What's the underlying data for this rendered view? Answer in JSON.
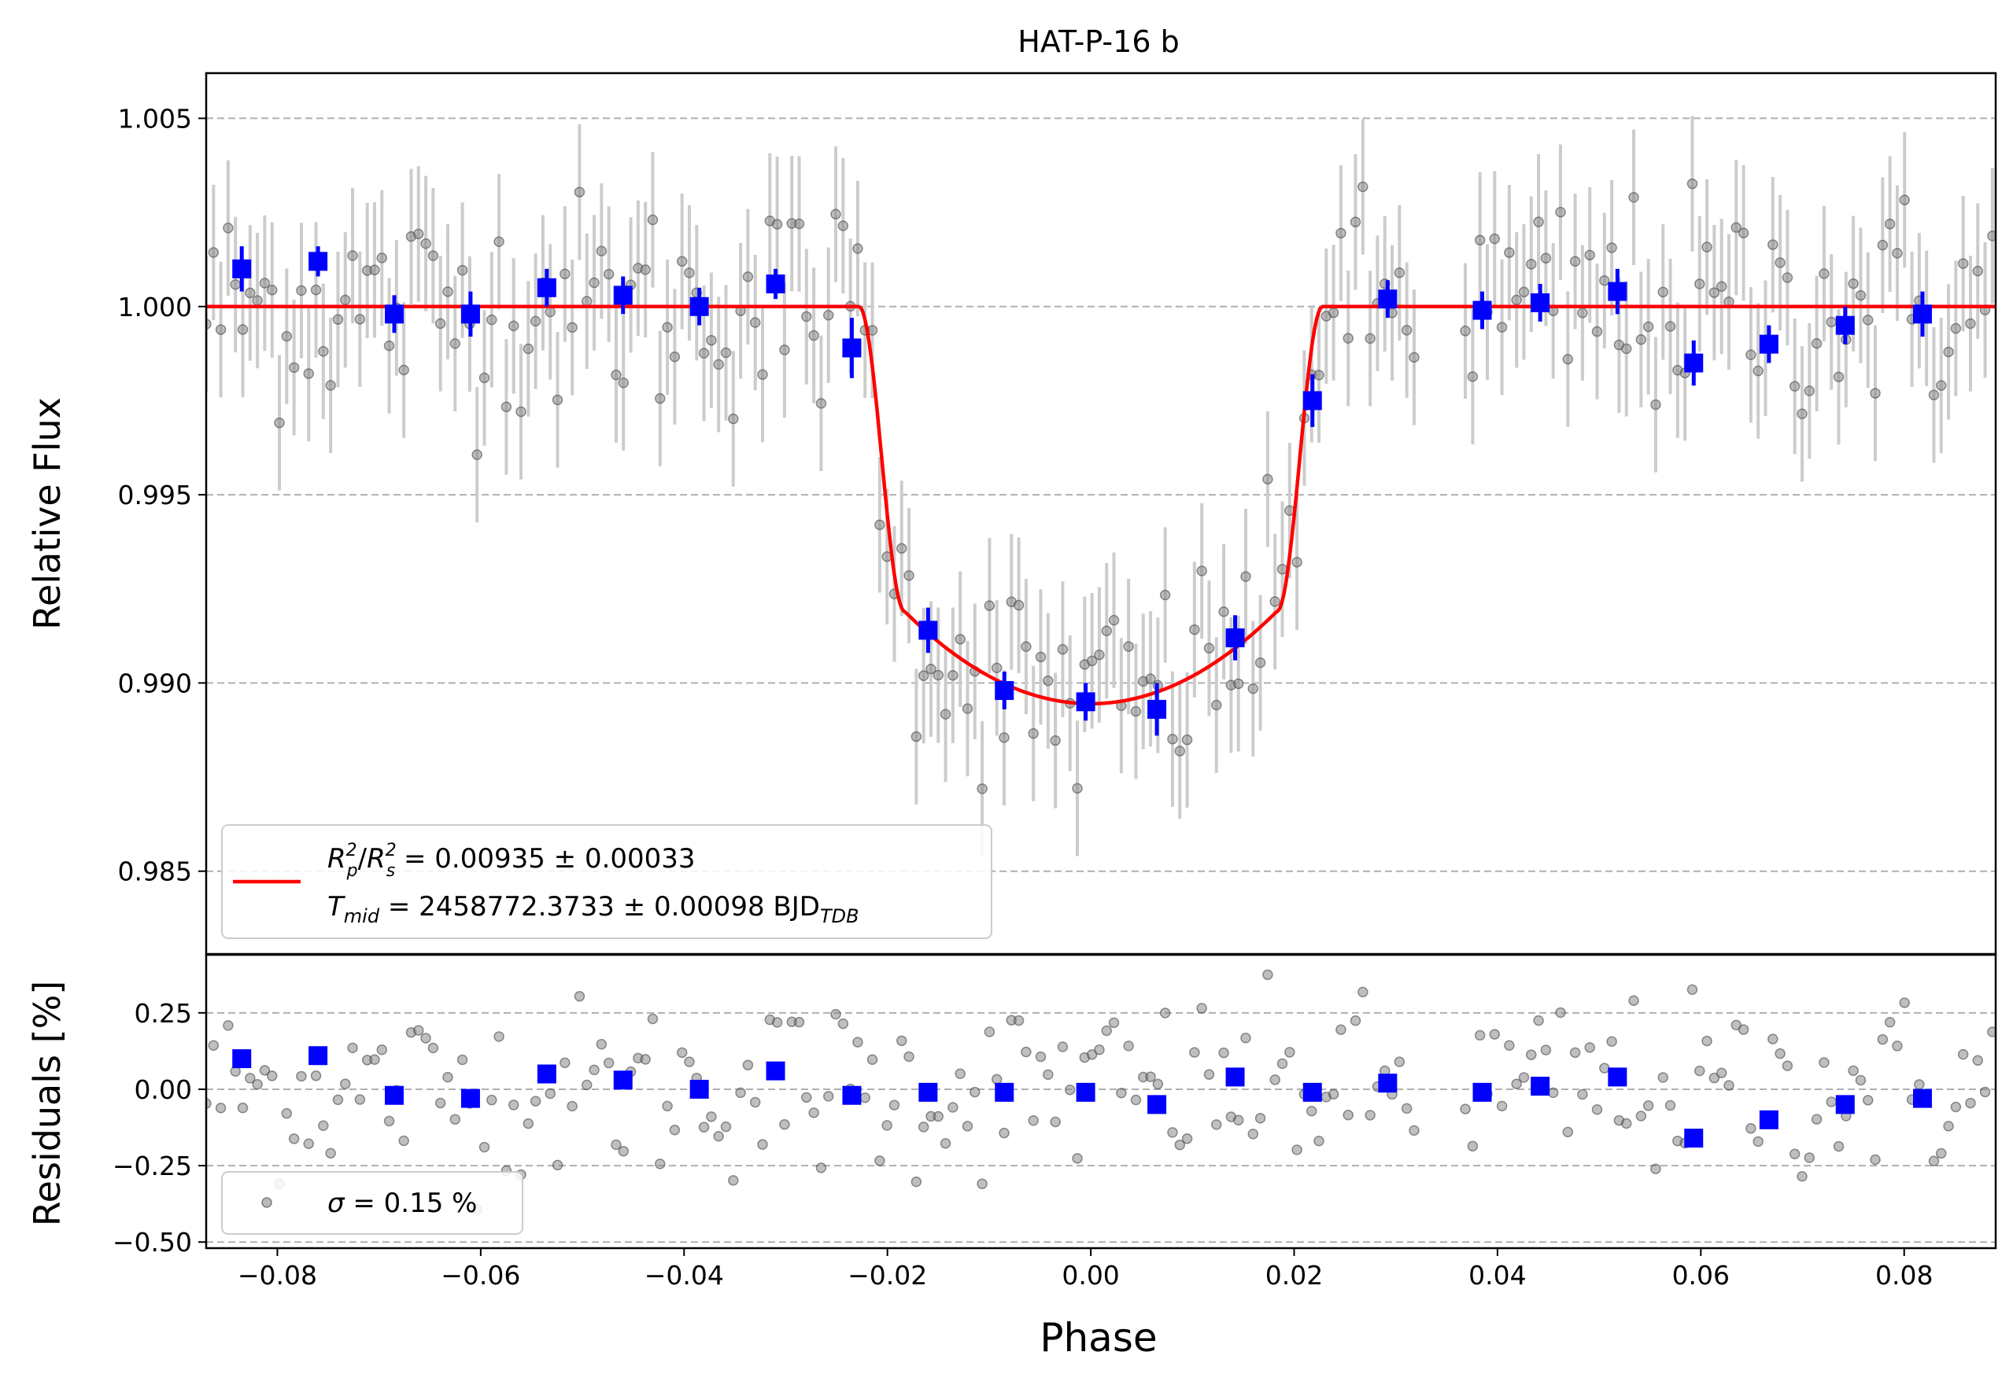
{
  "chart_data": [
    {
      "type": "scatter",
      "title": "HAT-P-16 b",
      "xlabel": "",
      "ylabel": "Relative Flux",
      "xlim": [
        -0.087,
        0.089
      ],
      "ylim": [
        0.9828,
        1.0062
      ],
      "yticks": [
        0.985,
        0.99,
        0.995,
        1.0,
        1.005
      ],
      "ytick_labels": [
        "0.985",
        "0.990",
        "0.995",
        "1.000",
        "1.005"
      ],
      "grid": "horizontal dashed",
      "legend_position": "lower-left",
      "legend": {
        "model_line1": "R_p^2/R_s^2 = 0.00935 ± 0.00033",
        "model_line1_parts": {
          "r1": "R",
          "p": "p",
          "sup1": "2",
          "slash": "/",
          "r2": "R",
          "s": "s",
          "sup2": "2",
          "rest": " = 0.00935 ± 0.00033"
        },
        "model_line2_parts": {
          "t": "T",
          "mid": "mid",
          "rest": " = 2458772.3733 ± 0.00098 BJD",
          "tdb": "TDB"
        }
      },
      "colors": {
        "model": "#ff0000",
        "binned": "#0000ff",
        "raw": "#808080",
        "errorbar": "#cccccc"
      },
      "model": {
        "name": "transit model",
        "baseline": 1.0,
        "ingress_start": -0.0228,
        "full_start": -0.0183,
        "full_end": 0.0183,
        "egress_end": 0.0228,
        "depth_center": 0.01055,
        "depth_edge": 0.0081
      },
      "binned": {
        "x": [
          -0.0835,
          -0.076,
          -0.0685,
          -0.061,
          -0.0535,
          -0.046,
          -0.0385,
          -0.031,
          -0.0235,
          -0.016,
          -0.0085,
          -0.0005,
          0.0065,
          0.0142,
          0.0218,
          0.0292,
          0.0385,
          0.0442,
          0.0518,
          0.0593,
          0.0667,
          0.0742,
          0.0818
        ],
        "y": [
          1.001,
          1.0012,
          0.9998,
          0.9998,
          1.0005,
          1.0003,
          1.0,
          1.0006,
          0.9989,
          0.9914,
          0.9898,
          0.9895,
          0.9893,
          0.9912,
          0.9975,
          1.0002,
          0.9999,
          1.0001,
          1.0004,
          0.9985,
          0.999,
          0.9995,
          0.9998
        ],
        "err": [
          0.0006,
          0.0004,
          0.0005,
          0.0006,
          0.0005,
          0.0005,
          0.0005,
          0.0004,
          0.0008,
          0.0006,
          0.0005,
          0.0005,
          0.0007,
          0.0006,
          0.0007,
          0.0005,
          0.0005,
          0.0005,
          0.0006,
          0.0006,
          0.0005,
          0.0005,
          0.0006
        ]
      },
      "raw_points": {
        "x_start": -0.087,
        "x_step": 0.00072,
        "count": 245,
        "gap": [
          0.0325,
          0.0365
        ],
        "scatter_sigma": 0.0015,
        "errorbar": 0.0018
      }
    },
    {
      "type": "scatter",
      "xlabel": "Phase",
      "ylabel": "Residuals [%]",
      "xlim": [
        -0.087,
        0.089
      ],
      "ylim": [
        -0.52,
        0.44
      ],
      "yticks": [
        -0.5,
        -0.25,
        0.0,
        0.25
      ],
      "ytick_labels": [
        "−0.50",
        "−0.25",
        "0.00",
        "0.25"
      ],
      "xticks": [
        -0.08,
        -0.06,
        -0.04,
        -0.02,
        0.0,
        0.02,
        0.04,
        0.06,
        0.08
      ],
      "xtick_labels": [
        "−0.08",
        "−0.06",
        "−0.04",
        "−0.02",
        "0.00",
        "0.02",
        "0.04",
        "0.06",
        "0.08"
      ],
      "grid": "horizontal dashed",
      "legend_position": "lower-left",
      "legend": {
        "sigma_symbol": "σ",
        "sigma_rest": " = 0.15 %"
      },
      "binned_residuals": {
        "x": [
          -0.0835,
          -0.076,
          -0.0685,
          -0.061,
          -0.0535,
          -0.046,
          -0.0385,
          -0.031,
          -0.0235,
          -0.016,
          -0.0085,
          -0.0005,
          0.0065,
          0.0142,
          0.0218,
          0.0292,
          0.0385,
          0.0442,
          0.0518,
          0.0593,
          0.0667,
          0.0742,
          0.0818
        ],
        "y": [
          0.1,
          0.11,
          -0.02,
          -0.03,
          0.05,
          0.03,
          0.0,
          0.06,
          -0.02,
          -0.01,
          -0.01,
          -0.01,
          -0.05,
          0.04,
          -0.01,
          0.02,
          -0.01,
          0.01,
          0.04,
          -0.16,
          -0.1,
          -0.05,
          -0.03
        ]
      },
      "raw_residuals": {
        "sigma": 0.15
      }
    }
  ]
}
